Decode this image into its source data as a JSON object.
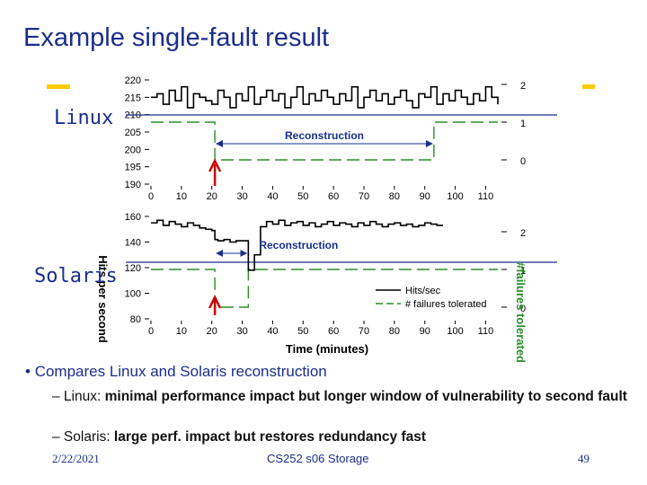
{
  "slide": {
    "title": "Example single-fault result",
    "label_linux": "Linux",
    "label_solaris": "Solaris",
    "bullet": "Compares Linux and Solaris reconstruction",
    "sub1_prefix": "– Linux: ",
    "sub1_body": "minimal performance impact but longer window of vulnerability to second fault",
    "sub2_prefix": "– Solaris: ",
    "sub2_body": "large perf. impact but restores redundancy fast",
    "footer_date": "2/22/2021",
    "footer_center": "CS252 s06 Storage",
    "page_number": "49",
    "accent_color": "#ffcc00",
    "title_color": "#1a2e8c"
  },
  "chart_data": [
    {
      "type": "line",
      "panel": "Linux",
      "x": [
        0,
        2,
        4,
        6,
        8,
        10,
        12,
        14,
        16,
        18,
        20,
        22,
        24,
        26,
        28,
        30,
        32,
        34,
        36,
        38,
        40,
        42,
        44,
        46,
        48,
        50,
        52,
        54,
        56,
        58,
        60,
        62,
        64,
        66,
        68,
        70,
        72,
        74,
        76,
        78,
        80,
        82,
        84,
        86,
        88,
        90,
        92,
        94,
        96,
        98,
        100,
        102,
        104,
        106,
        108,
        110,
        112,
        114
      ],
      "series": [
        {
          "name": "Hits/sec",
          "values": [
            215,
            216,
            213,
            217,
            214,
            218,
            212,
            216,
            215,
            214,
            213,
            217,
            215,
            212,
            216,
            214,
            218,
            213,
            215,
            217,
            214,
            216,
            212,
            215,
            218,
            213,
            216,
            214,
            217,
            215,
            213,
            216,
            214,
            218,
            212,
            215,
            217,
            214,
            216,
            213,
            215,
            217,
            214,
            212,
            216,
            215,
            218,
            213,
            216,
            214,
            217,
            215,
            213,
            216,
            214,
            218,
            215,
            213
          ]
        }
      ],
      "failures_tolerated": {
        "name": "# failures tolerated",
        "segments": [
          {
            "x": [
              0,
              21
            ],
            "value": 1
          },
          {
            "x": [
              21,
              93
            ],
            "value": 0
          },
          {
            "x": [
              93,
              114
            ],
            "value": 1
          }
        ]
      },
      "annotation": "Reconstruction",
      "annotation_range": [
        21,
        93
      ],
      "xticks": [
        0,
        10,
        20,
        30,
        40,
        50,
        60,
        70,
        80,
        90,
        100,
        110
      ],
      "yticks": [
        190,
        195,
        200,
        205,
        210,
        215,
        220
      ],
      "y2ticks": [
        0,
        1,
        2
      ],
      "xlim": [
        0,
        114
      ],
      "ylim": [
        190,
        220
      ],
      "y2lim": [
        0,
        2
      ]
    },
    {
      "type": "line",
      "panel": "Solaris",
      "x": [
        0,
        2,
        4,
        6,
        8,
        10,
        12,
        14,
        16,
        18,
        20,
        21,
        22,
        24,
        26,
        28,
        30,
        32,
        34,
        36,
        38,
        40,
        42,
        44,
        46,
        48,
        50,
        52,
        54,
        56,
        58,
        60,
        62,
        64,
        66,
        68,
        70,
        72,
        74,
        76,
        78,
        80,
        82,
        84,
        86,
        88,
        90,
        92,
        94,
        96
      ],
      "series": [
        {
          "name": "Hits/sec",
          "values": [
            155,
            157,
            153,
            156,
            154,
            152,
            155,
            153,
            151,
            150,
            149,
            142,
            141,
            142,
            140,
            141,
            141,
            118,
            130,
            152,
            156,
            154,
            157,
            153,
            155,
            156,
            153,
            155,
            152,
            154,
            156,
            153,
            155,
            154,
            152,
            155,
            153,
            156,
            154,
            152,
            154,
            155,
            153,
            154,
            152,
            153,
            155,
            154,
            153,
            153
          ]
        }
      ],
      "failures_tolerated": {
        "name": "# failures tolerated",
        "segments": [
          {
            "x": [
              0,
              21
            ],
            "value": 1
          },
          {
            "x": [
              21,
              32
            ],
            "value": 0
          },
          {
            "x": [
              32,
              114
            ],
            "value": 1
          }
        ]
      },
      "annotation": "Reconstruction",
      "annotation_range": [
        21,
        32
      ],
      "xlabel": "Time (minutes)",
      "ylabel": "Hits per second",
      "y2label": "#failures tolerated",
      "legend": [
        "Hits/sec",
        "# failures tolerated"
      ],
      "legend_position": "bottom-right",
      "xticks": [
        0,
        10,
        20,
        30,
        40,
        50,
        60,
        70,
        80,
        90,
        100,
        110
      ],
      "yticks": [
        80,
        100,
        120,
        140,
        160
      ],
      "y2ticks": [
        0,
        1,
        2
      ],
      "xlim": [
        0,
        114
      ],
      "ylim": [
        80,
        160
      ],
      "y2lim": [
        0,
        2
      ]
    }
  ]
}
